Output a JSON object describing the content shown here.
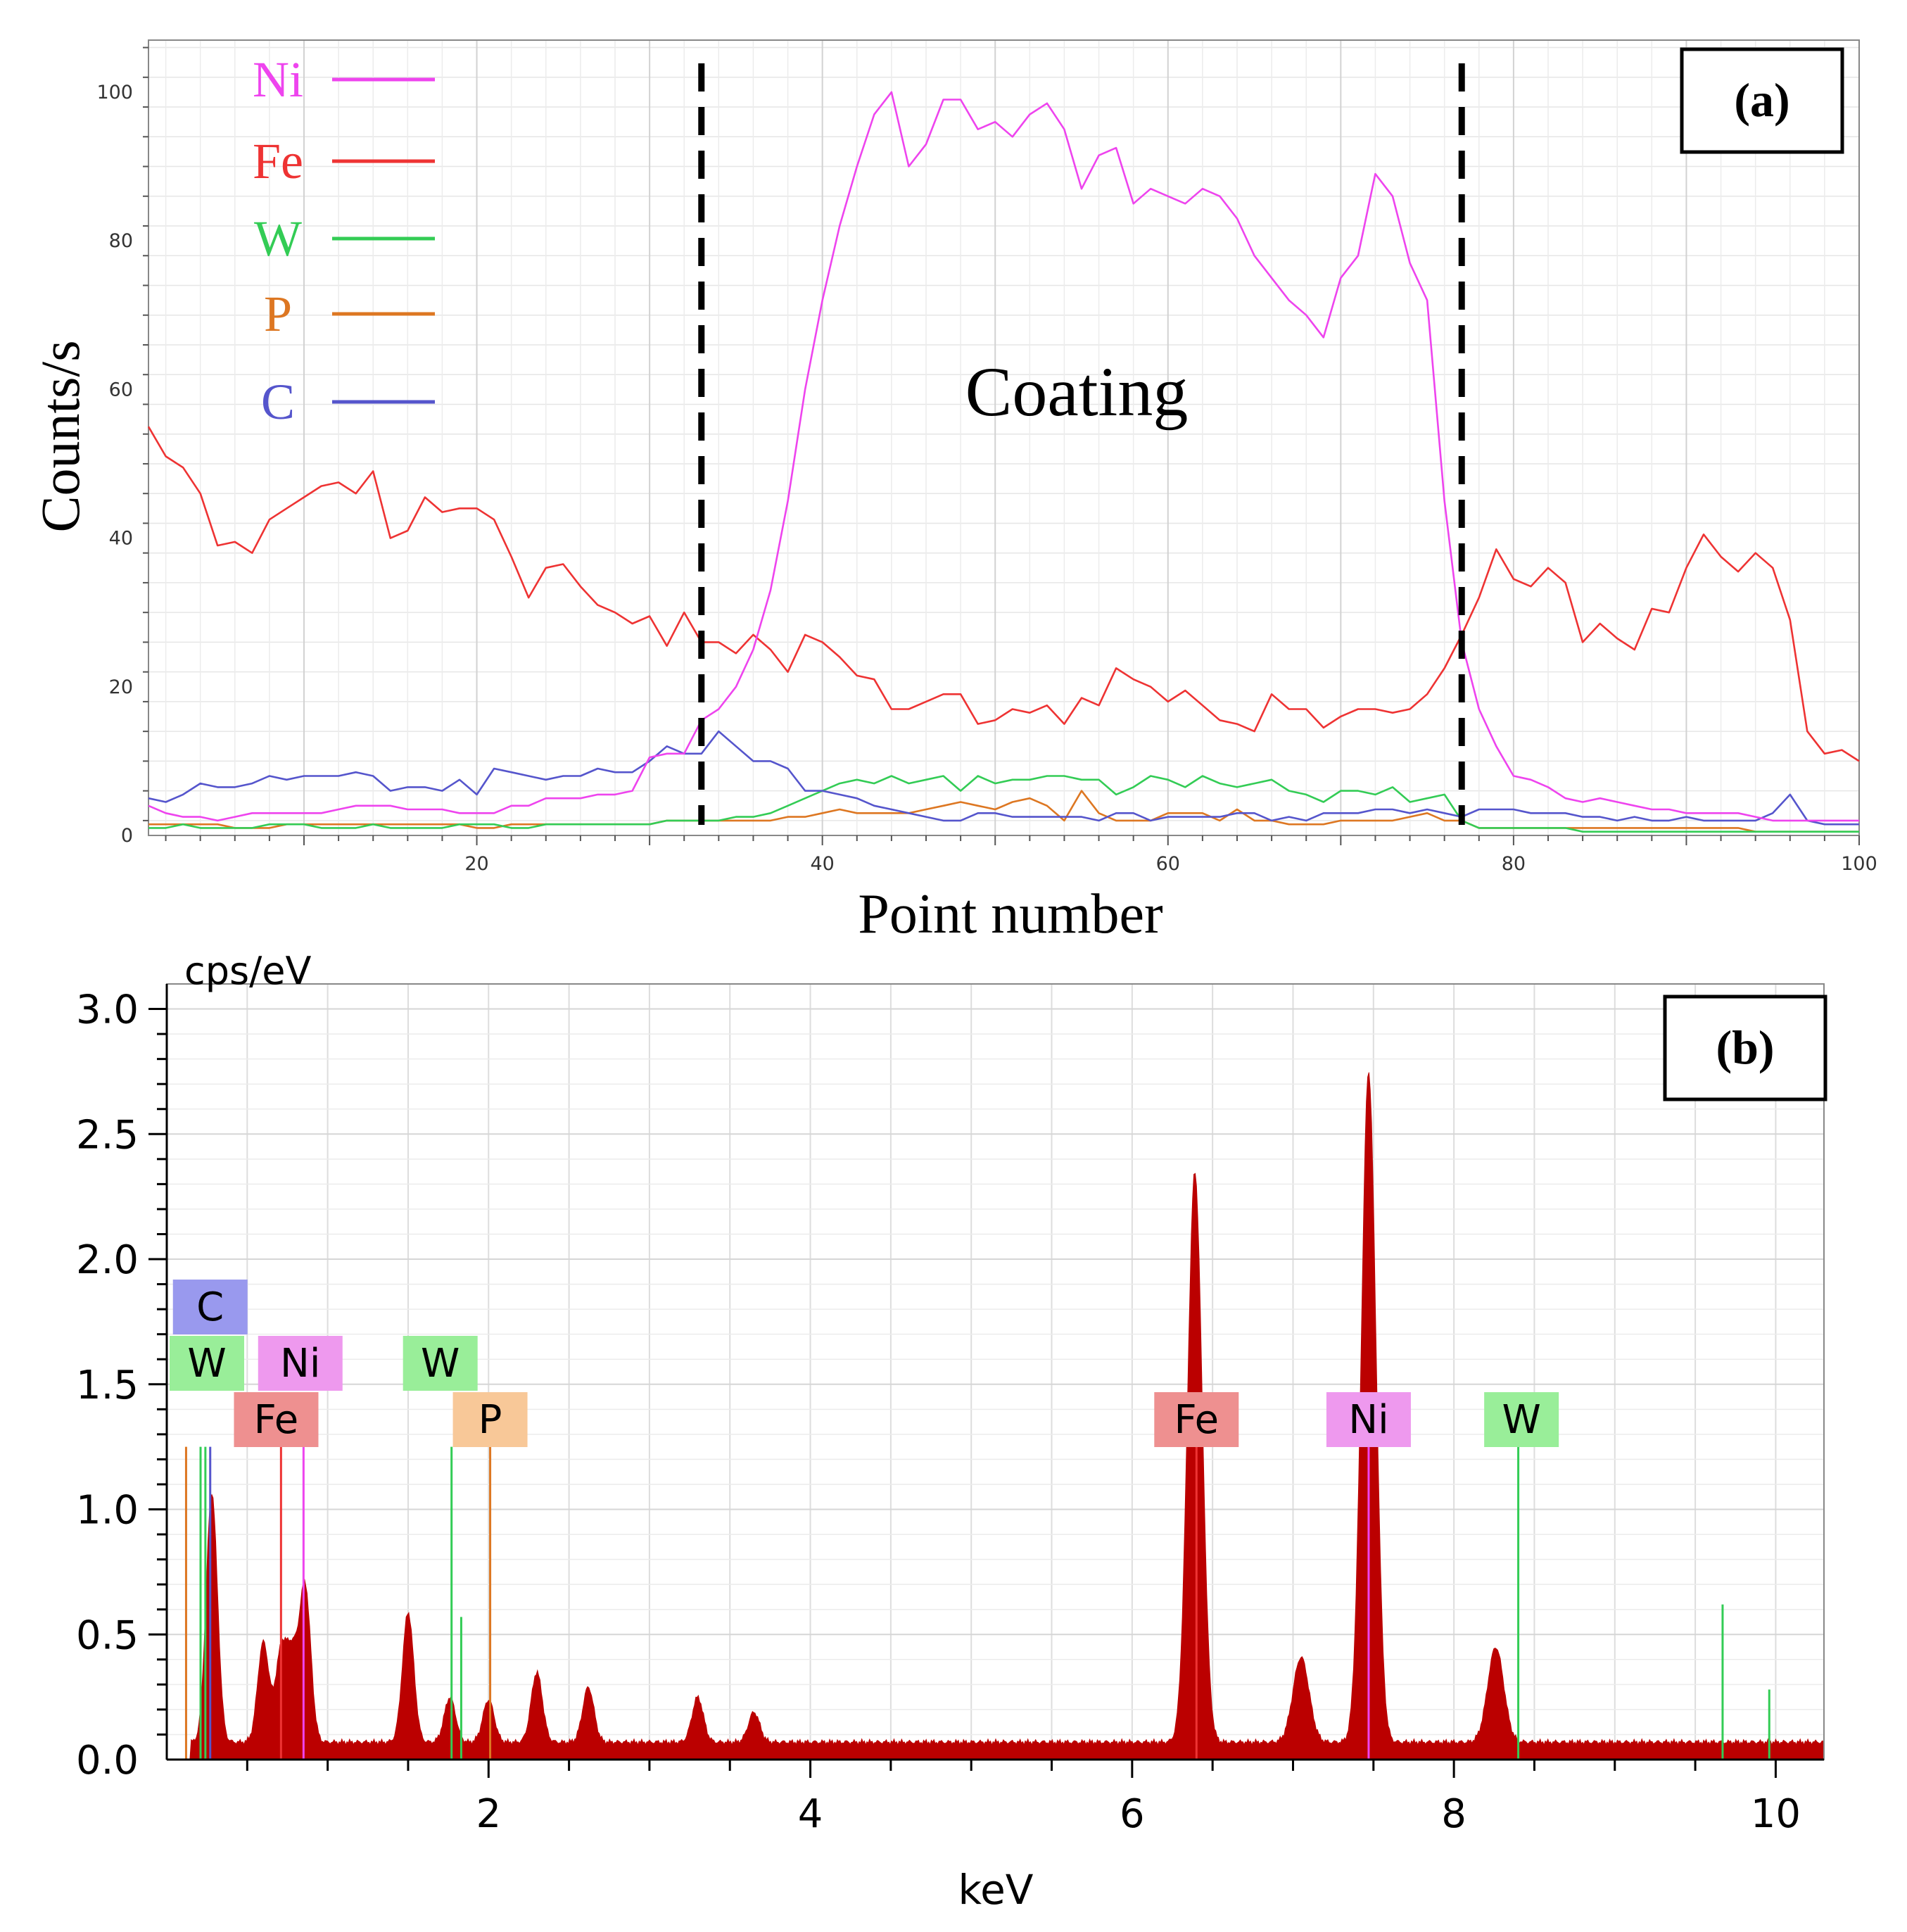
{
  "colors": {
    "Ni": "#ee44ee",
    "Fe": "#ee3333",
    "W": "#33cc55",
    "P": "#dd7722",
    "C": "#5555cc",
    "spectrum": "#bb0000",
    "tag_C": "#9999ee",
    "tag_W": "#99ee99",
    "tag_Ni": "#ee99ee",
    "tag_Fe": "#ee9090",
    "tag_P": "#f8c898"
  },
  "chart_data": [
    {
      "type": "line",
      "panel_label": "(a)",
      "xlabel": "Point number",
      "ylabel": "Counts/s",
      "xlim": [
        1,
        100
      ],
      "ylim": [
        0,
        107
      ],
      "xticks": [
        20,
        40,
        60,
        80,
        100
      ],
      "yticks": [
        0,
        20,
        40,
        60,
        80,
        100
      ],
      "grid": true,
      "legend_position": "top-left",
      "annotation": "Coating",
      "boundaries": [
        33,
        77
      ],
      "x": [
        1,
        2,
        3,
        4,
        5,
        6,
        7,
        8,
        9,
        10,
        11,
        12,
        13,
        14,
        15,
        16,
        17,
        18,
        19,
        20,
        21,
        22,
        23,
        24,
        25,
        26,
        27,
        28,
        29,
        30,
        31,
        32,
        33,
        34,
        35,
        36,
        37,
        38,
        39,
        40,
        41,
        42,
        43,
        44,
        45,
        46,
        47,
        48,
        49,
        50,
        51,
        52,
        53,
        54,
        55,
        56,
        57,
        58,
        59,
        60,
        61,
        62,
        63,
        64,
        65,
        66,
        67,
        68,
        69,
        70,
        71,
        72,
        73,
        74,
        75,
        76,
        77,
        78,
        79,
        80,
        81,
        82,
        83,
        84,
        85,
        86,
        87,
        88,
        89,
        90,
        91,
        92,
        93,
        94,
        95,
        96,
        97,
        98,
        99,
        100
      ],
      "series": [
        {
          "name": "Ni",
          "values": [
            4,
            3,
            2.5,
            2.5,
            2,
            2.5,
            3,
            3,
            3,
            3,
            3,
            3.5,
            4,
            4,
            4,
            3.5,
            3.5,
            3.5,
            3,
            3,
            3,
            4,
            4,
            5,
            5,
            5,
            5.5,
            5.5,
            6,
            10.5,
            11,
            11,
            15.5,
            17,
            20,
            25,
            33,
            45,
            60,
            72,
            82,
            90,
            97,
            100,
            90,
            93,
            99,
            99,
            95,
            96,
            94,
            97,
            98.5,
            95,
            87,
            91.5,
            92.5,
            85,
            87,
            86,
            85,
            87,
            86,
            83,
            78,
            75,
            72,
            70,
            67,
            75,
            78,
            89,
            86,
            77,
            72,
            45,
            26,
            17,
            12,
            8,
            7.5,
            6.5,
            5,
            4.5,
            5,
            4.5,
            4,
            3.5,
            3.5,
            3,
            3,
            3,
            3,
            2.5,
            2,
            2,
            2,
            2,
            2,
            2
          ]
        },
        {
          "name": "Fe",
          "values": [
            55,
            51,
            49.5,
            46,
            39,
            39.5,
            38,
            42.5,
            44,
            45.5,
            47,
            47.5,
            46,
            49,
            40,
            41,
            45.5,
            43.5,
            44,
            44,
            42.5,
            37.5,
            32,
            36,
            36.5,
            33.5,
            31,
            30,
            28.5,
            29.5,
            25.5,
            30,
            26,
            26,
            24.5,
            27,
            25,
            22,
            27,
            26,
            24,
            21.5,
            21,
            17,
            17,
            18,
            19,
            19,
            15,
            15.5,
            17,
            16.5,
            17.5,
            15,
            18.5,
            17.5,
            22.5,
            21,
            20,
            18,
            19.5,
            17.5,
            15.5,
            15,
            14,
            19,
            17,
            17,
            14.5,
            16,
            17,
            17,
            16.5,
            17,
            19,
            22.5,
            27,
            32,
            38.5,
            34.5,
            33.5,
            36,
            34,
            26,
            28.5,
            26.5,
            25,
            30.5,
            30,
            36,
            40.5,
            37.5,
            35.5,
            38,
            36,
            29,
            14,
            11,
            11.5,
            10
          ]
        },
        {
          "name": "W",
          "values": [
            1,
            1,
            1.5,
            1,
            1,
            1,
            1,
            1.5,
            1.5,
            1.5,
            1,
            1,
            1,
            1.5,
            1,
            1,
            1,
            1,
            1.5,
            1.5,
            1.5,
            1,
            1,
            1.5,
            1.5,
            1.5,
            1.5,
            1.5,
            1.5,
            1.5,
            2,
            2,
            2,
            2,
            2.5,
            2.5,
            3,
            4,
            5,
            6,
            7,
            7.5,
            7,
            8,
            7,
            7.5,
            8,
            6,
            8,
            7,
            7.5,
            7.5,
            8,
            8,
            7.5,
            7.5,
            5.5,
            6.5,
            8,
            7.5,
            6.5,
            8,
            7,
            6.5,
            7,
            7.5,
            6,
            5.5,
            4.5,
            6,
            6,
            5.5,
            6.5,
            4.5,
            5,
            5.5,
            2,
            1,
            1,
            1,
            1,
            1,
            1,
            0.5,
            0.5,
            0.5,
            0.5,
            0.5,
            0.5,
            0.5,
            0.5,
            0.5,
            0.5,
            0.5,
            0.5,
            0.5,
            0.5,
            0.5,
            0.5,
            0.5
          ]
        },
        {
          "name": "P",
          "values": [
            1.5,
            1.5,
            1.5,
            1.5,
            1.5,
            1,
            1,
            1,
            1.5,
            1.5,
            1.5,
            1.5,
            1.5,
            1.5,
            1.5,
            1.5,
            1.5,
            1.5,
            1.5,
            1,
            1,
            1.5,
            1.5,
            1.5,
            1.5,
            1.5,
            1.5,
            1.5,
            1.5,
            1.5,
            2,
            2,
            2,
            2,
            2,
            2,
            2,
            2.5,
            2.5,
            3,
            3.5,
            3,
            3,
            3,
            3,
            3.5,
            4,
            4.5,
            4,
            3.5,
            4.5,
            5,
            4,
            2,
            6,
            3,
            2,
            2,
            2,
            3,
            3,
            3,
            2,
            3.5,
            2,
            2,
            1.5,
            1.5,
            1.5,
            2,
            2,
            2,
            2,
            2.5,
            3,
            2,
            2,
            1,
            1,
            1,
            1,
            1,
            1,
            1,
            1,
            1,
            1,
            1,
            1,
            1,
            1,
            1,
            1,
            0.5,
            0.5,
            0.5,
            0.5,
            0.5,
            0.5,
            0.5
          ]
        },
        {
          "name": "C",
          "values": [
            5,
            4.5,
            5.5,
            7,
            6.5,
            6.5,
            7,
            8,
            7.5,
            8,
            8,
            8,
            8.5,
            8,
            6,
            6.5,
            6.5,
            6,
            7.5,
            5.5,
            9,
            8.5,
            8,
            7.5,
            8,
            8,
            9,
            8.5,
            8.5,
            10,
            12,
            11,
            11,
            14,
            12,
            10,
            10,
            9,
            6,
            6,
            5.5,
            5,
            4,
            3.5,
            3,
            2.5,
            2,
            2,
            3,
            3,
            2.5,
            2.5,
            2.5,
            2.5,
            2.5,
            2,
            3,
            3,
            2,
            2.5,
            2.5,
            2.5,
            2.5,
            3,
            3,
            2,
            2.5,
            2,
            3,
            3,
            3,
            3.5,
            3.5,
            3,
            3.5,
            3,
            2.5,
            3.5,
            3.5,
            3.5,
            3,
            3,
            3,
            2.5,
            2.5,
            2,
            2.5,
            2,
            2,
            2.5,
            2,
            2,
            2,
            2,
            3,
            5.5,
            2,
            1.5,
            1.5,
            1.5
          ]
        }
      ]
    },
    {
      "type": "area",
      "panel_label": "(b)",
      "ylabel": "cps/eV",
      "xlabel": "keV",
      "xlim": [
        0,
        10.3
      ],
      "ylim": [
        0,
        3.1
      ],
      "xticks": [
        2,
        4,
        6,
        8,
        10
      ],
      "yticks": [
        "0.0",
        "0.5",
        "1.0",
        "1.5",
        "2.0",
        "2.5",
        "3.0"
      ],
      "grid": true,
      "background": 0.07,
      "peaks": [
        {
          "kev": 0.28,
          "height": 1.0
        },
        {
          "kev": 0.6,
          "height": 0.4
        },
        {
          "kev": 0.71,
          "height": 0.35
        },
        {
          "kev": 0.78,
          "height": 0.32
        },
        {
          "kev": 0.86,
          "height": 0.62
        },
        {
          "kev": 1.5,
          "height": 0.52
        },
        {
          "kev": 1.76,
          "height": 0.18
        },
        {
          "kev": 2.0,
          "height": 0.17
        },
        {
          "kev": 2.3,
          "height": 0.28
        },
        {
          "kev": 2.62,
          "height": 0.22
        },
        {
          "kev": 3.3,
          "height": 0.18
        },
        {
          "kev": 3.65,
          "height": 0.12
        },
        {
          "kev": 6.39,
          "height": 2.28
        },
        {
          "kev": 7.05,
          "height": 0.34
        },
        {
          "kev": 7.47,
          "height": 2.68
        },
        {
          "kev": 8.26,
          "height": 0.38
        }
      ],
      "element_lines": [
        {
          "element": "C",
          "kev": 0.27,
          "height": 1.25
        },
        {
          "element": "W",
          "kev": 0.21,
          "height": 1.25
        },
        {
          "element": "W",
          "kev": 0.24,
          "height": 1.25
        },
        {
          "element": "P",
          "kev": 0.12,
          "height": 1.25
        },
        {
          "element": "Fe",
          "kev": 0.71,
          "height": 1.25
        },
        {
          "element": "Ni",
          "kev": 0.85,
          "height": 1.25
        },
        {
          "element": "W",
          "kev": 1.77,
          "height": 1.25
        },
        {
          "element": "W",
          "kev": 1.83,
          "height": 0.57
        },
        {
          "element": "P",
          "kev": 2.01,
          "height": 1.25
        },
        {
          "element": "Fe",
          "kev": 6.4,
          "height": 1.25
        },
        {
          "element": "Ni",
          "kev": 7.47,
          "height": 1.25
        },
        {
          "element": "W",
          "kev": 8.4,
          "height": 1.25
        },
        {
          "element": "W",
          "kev": 9.67,
          "height": 0.62
        },
        {
          "element": "W",
          "kev": 9.96,
          "height": 0.28
        }
      ],
      "tags": [
        {
          "label": "C",
          "kev": 0.27,
          "row": 0,
          "color": "tag_C"
        },
        {
          "label": "W",
          "kev": 0.15,
          "row": 1,
          "color": "tag_W"
        },
        {
          "label": "Ni",
          "kev": 0.83,
          "row": 1,
          "color": "tag_Ni"
        },
        {
          "label": "Fe",
          "kev": 0.68,
          "row": 2,
          "color": "tag_Fe"
        },
        {
          "label": "W",
          "kev": 1.7,
          "row": 1,
          "color": "tag_W"
        },
        {
          "label": "P",
          "kev": 2.01,
          "row": 2,
          "color": "tag_P"
        },
        {
          "label": "Fe",
          "kev": 6.4,
          "row": 2,
          "color": "tag_Fe"
        },
        {
          "label": "Ni",
          "kev": 7.47,
          "row": 2,
          "color": "tag_Ni"
        },
        {
          "label": "W",
          "kev": 8.42,
          "row": 2,
          "color": "tag_W"
        }
      ]
    }
  ]
}
